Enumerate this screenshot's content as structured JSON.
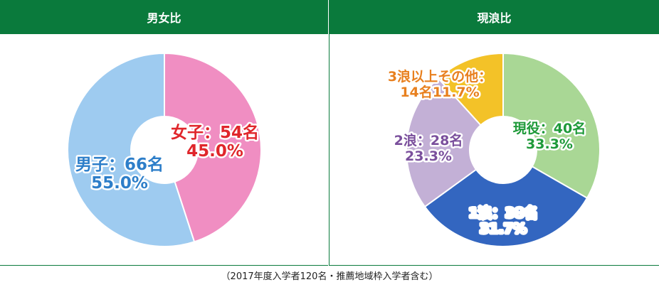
{
  "chart_data": [
    {
      "type": "pie",
      "title": "男女比",
      "slices": [
        {
          "name": "女子",
          "count_label": "女子：54名",
          "percent_label": "45.0%",
          "value": 45.0,
          "color": "#f08ec2",
          "label_color": "#e0262b"
        },
        {
          "name": "男子",
          "count_label": "男子：66名",
          "percent_label": "55.0%",
          "value": 55.0,
          "color": "#9ecbf0",
          "label_color": "#2d7ec9"
        }
      ]
    },
    {
      "type": "pie",
      "title": "現浪比",
      "slices": [
        {
          "name": "現役",
          "count_label": "現役：40名",
          "percent_label": "33.3%",
          "value": 33.3,
          "color": "#a9d795",
          "label_color": "#1f9a3a"
        },
        {
          "name": "1浪",
          "count_label": "1浪：38名",
          "percent_label": "31.7%",
          "value": 31.7,
          "color": "#3366c0",
          "label_color": "#ffffff"
        },
        {
          "name": "2浪",
          "count_label": "2浪：28名",
          "percent_label": "23.3%",
          "value": 23.3,
          "color": "#c3b0d6",
          "label_color": "#7a4f9c"
        },
        {
          "name": "3浪以上その他",
          "count_label": "3浪以上その他：",
          "percent_label": "14名11.7%",
          "value": 11.7,
          "color": "#f3c228",
          "label_color": "#e8801f"
        }
      ]
    }
  ],
  "footer": "（2017年度入学者120名・推薦地域枠入学者含む）"
}
